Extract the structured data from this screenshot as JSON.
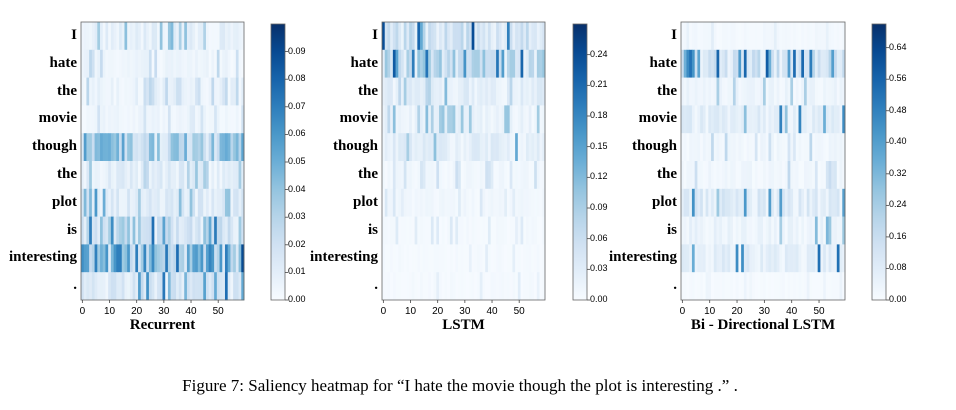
{
  "caption": "Figure 7: Saliency heatmap for “I hate the movie though the plot is interesting .” .",
  "chart_data": [
    {
      "type": "heatmap",
      "title": "Recurrent",
      "rows": [
        "I",
        "hate",
        "the",
        "movie",
        "though",
        "the",
        "plot",
        "is",
        "interesting",
        "."
      ],
      "x_ticks": [
        0,
        10,
        20,
        30,
        40,
        50
      ],
      "n_columns": 60,
      "colorbar_ticks": [
        "0.00",
        "0.01",
        "0.02",
        "0.03",
        "0.04",
        "0.05",
        "0.06",
        "0.07",
        "0.08",
        "0.09"
      ],
      "vmax": 0.1,
      "row_mean": [
        0.01,
        0.006,
        0.008,
        0.005,
        0.035,
        0.012,
        0.015,
        0.03,
        0.05,
        0.02
      ],
      "row_peak": [
        0.05,
        0.03,
        0.03,
        0.02,
        0.06,
        0.04,
        0.06,
        0.08,
        0.095,
        0.08
      ],
      "colormap": "Blues"
    },
    {
      "type": "heatmap",
      "title": "LSTM",
      "rows": [
        "I",
        "hate",
        "the",
        "movie",
        "though",
        "the",
        "plot",
        "is",
        "interesting",
        "."
      ],
      "x_ticks": [
        0,
        10,
        20,
        30,
        40,
        50
      ],
      "n_columns": 60,
      "colorbar_ticks": [
        "0.00",
        "0.03",
        "0.06",
        "0.09",
        "0.12",
        "0.15",
        "0.18",
        "0.21",
        "0.24"
      ],
      "vmax": 0.27,
      "row_mean": [
        0.06,
        0.08,
        0.03,
        0.02,
        0.03,
        0.01,
        0.01,
        0.006,
        0.005,
        0.005
      ],
      "row_peak": [
        0.26,
        0.24,
        0.12,
        0.12,
        0.15,
        0.06,
        0.05,
        0.04,
        0.04,
        0.03
      ],
      "colormap": "Blues"
    },
    {
      "type": "heatmap",
      "title": "Bi - Directional LSTM",
      "rows": [
        "I",
        "hate",
        "the",
        "movie",
        "though",
        "the",
        "plot",
        "is",
        "interesting",
        "."
      ],
      "x_ticks": [
        0,
        10,
        20,
        30,
        40,
        50
      ],
      "n_columns": 60,
      "colorbar_ticks": [
        "0.00",
        "0.08",
        "0.16",
        "0.24",
        "0.32",
        "0.40",
        "0.48",
        "0.56",
        "0.64"
      ],
      "vmax": 0.7,
      "row_mean": [
        0.02,
        0.15,
        0.04,
        0.08,
        0.03,
        0.03,
        0.1,
        0.05,
        0.08,
        0.01
      ],
      "row_peak": [
        0.08,
        0.6,
        0.25,
        0.5,
        0.2,
        0.2,
        0.45,
        0.35,
        0.65,
        0.05
      ],
      "colormap": "Blues"
    }
  ]
}
